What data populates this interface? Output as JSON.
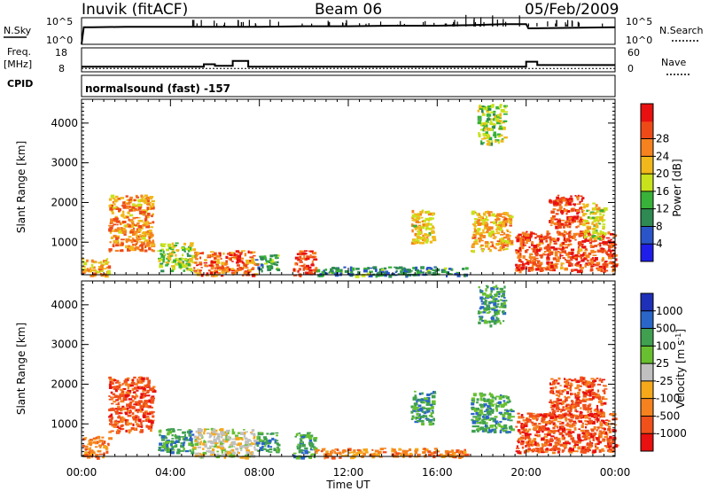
{
  "header": {
    "station": "Inuvik (fitACF)",
    "beam": "Beam 06",
    "date": "05/Feb/2009"
  },
  "left_labels": {
    "nsky": "N.Sky",
    "freq_line1": "Freq.",
    "freq_line2": "[MHz]",
    "cpid": "CPID"
  },
  "right_labels": {
    "nsearch": "N.Search",
    "nave": "Nave"
  },
  "cpid_text": "normalsound (fast) -157",
  "axes": {
    "x_title": "Time UT",
    "y_title": "Slant Range [km]",
    "x_ticks": [
      "00:00",
      "04:00",
      "08:00",
      "12:00",
      "16:00",
      "20:00",
      "00:00"
    ],
    "y_ticks": [
      "1000",
      "2000",
      "3000",
      "4000"
    ],
    "nsky_ticks": [
      "10^5",
      "10^0"
    ],
    "nsearch_ticks": [
      "10^5",
      "10^0"
    ],
    "freq_ticks": [
      "18",
      "8"
    ],
    "nave_ticks": [
      "60",
      "0"
    ]
  },
  "colors": {
    "power": [
      "#1e1ee8",
      "#2a55c8",
      "#2e8a52",
      "#38b238",
      "#c8e21c",
      "#f0b81a",
      "#f5821e",
      "#ee4a18",
      "#e81010"
    ],
    "velocity": [
      "#e81010",
      "#f0501a",
      "#f5821e",
      "#f5a81a",
      "#c0c0c0",
      "#68c030",
      "#40a050",
      "#2a66c8",
      "#1e30b8"
    ]
  },
  "chart_data": [
    {
      "type": "line",
      "title": "N.Sky / N.Search",
      "x_range_hours": [
        0,
        24
      ],
      "series": [
        {
          "name": "N.Sky",
          "x": [
            0.0,
            0.1,
            0.5,
            2.0,
            4.0,
            6.0,
            8.0,
            10.0,
            12.0,
            14.0,
            16.0,
            17.5,
            19.0,
            20.0,
            20.1,
            22.0,
            24.0
          ],
          "y": [
            0.0,
            3.2,
            3.2,
            3.3,
            3.3,
            3.3,
            3.3,
            3.4,
            3.4,
            3.5,
            3.5,
            3.6,
            3.8,
            3.8,
            3.0,
            3.1,
            3.2
          ]
        },
        {
          "name": "N.Search",
          "x": [
            0,
            24
          ],
          "y": [
            0,
            0
          ]
        }
      ]
    },
    {
      "type": "line",
      "title": "Freq. [MHz] / Nave",
      "x_range_hours": [
        0,
        24
      ],
      "series": [
        {
          "name": "Freq.",
          "x": [
            0.0,
            5.5,
            5.5,
            6.0,
            6.0,
            6.8,
            6.8,
            7.5,
            7.5,
            12.0,
            12.0,
            20.0,
            20.0,
            20.5,
            20.5,
            24.0
          ],
          "y": [
            11.0,
            11.0,
            12.5,
            12.5,
            11.5,
            11.5,
            14.5,
            14.5,
            11.0,
            11.0,
            11.0,
            11.0,
            14.0,
            14.0,
            12.0,
            12.0
          ]
        },
        {
          "name": "Nave",
          "x": [
            0.0,
            24.0
          ],
          "y": [
            12,
            12
          ]
        }
      ]
    },
    {
      "type": "heatmap",
      "title": "Power [dB]",
      "xlabel": "Time UT",
      "ylabel": "Slant Range [km]",
      "x_range_hours": [
        0,
        24
      ],
      "ylim": [
        180,
        4600
      ],
      "colorbar_label": "Power [dB]",
      "colorbar_ticks": [
        "4",
        "8",
        "12",
        "16",
        "20",
        "24",
        "28"
      ],
      "colorbar_range": [
        0,
        30
      ],
      "patches": [
        {
          "t0": 0.0,
          "t1": 1.2,
          "r0": 180,
          "r1": 600,
          "value": 20
        },
        {
          "t0": 1.2,
          "t1": 3.2,
          "r0": 800,
          "r1": 2200,
          "value": 22
        },
        {
          "t0": 3.4,
          "t1": 5.0,
          "r0": 300,
          "r1": 1000,
          "value": 14
        },
        {
          "t0": 5.0,
          "t1": 7.8,
          "r0": 180,
          "r1": 800,
          "value": 24
        },
        {
          "t0": 7.8,
          "t1": 8.8,
          "r0": 300,
          "r1": 700,
          "value": 10
        },
        {
          "t0": 9.5,
          "t1": 10.5,
          "r0": 180,
          "r1": 800,
          "value": 27
        },
        {
          "t0": 10.5,
          "t1": 17.3,
          "r0": 180,
          "r1": 400,
          "value": 8
        },
        {
          "t0": 14.8,
          "t1": 15.8,
          "r0": 1000,
          "r1": 1850,
          "value": 18
        },
        {
          "t0": 17.5,
          "t1": 19.3,
          "r0": 800,
          "r1": 1800,
          "value": 20
        },
        {
          "t0": 19.5,
          "t1": 24.0,
          "r0": 300,
          "r1": 1300,
          "value": 26
        },
        {
          "t0": 21.0,
          "t1": 22.5,
          "r0": 1400,
          "r1": 2200,
          "value": 27
        },
        {
          "t0": 22.5,
          "t1": 23.5,
          "r0": 1100,
          "r1": 2000,
          "value": 17
        },
        {
          "t0": 17.8,
          "t1": 19.0,
          "r0": 3500,
          "r1": 4500,
          "value": 14
        }
      ]
    },
    {
      "type": "heatmap",
      "title": "Velocity [m s-1]",
      "xlabel": "Time UT",
      "ylabel": "Slant Range [km]",
      "x_range_hours": [
        0,
        24
      ],
      "ylim": [
        180,
        4600
      ],
      "colorbar_label": "Velocity [m s",
      "colorbar_label_sup": "-1",
      "colorbar_label_end": "]",
      "colorbar_ticks": [
        "1000",
        "500",
        "100",
        "25",
        "-25",
        "-100",
        "-500",
        "-1000"
      ],
      "patches": [
        {
          "t0": 0.0,
          "t1": 1.2,
          "r0": 180,
          "r1": 700,
          "value": -120
        },
        {
          "t0": 1.2,
          "t1": 3.2,
          "r0": 800,
          "r1": 2200,
          "value": -150
        },
        {
          "t0": 3.4,
          "t1": 5.0,
          "r0": 300,
          "r1": 900,
          "value": 120
        },
        {
          "t0": 5.0,
          "t1": 7.8,
          "r0": 180,
          "r1": 900,
          "value": 20
        },
        {
          "t0": 7.8,
          "t1": 8.8,
          "r0": 300,
          "r1": 800,
          "value": 120
        },
        {
          "t0": 9.5,
          "t1": 10.5,
          "r0": 180,
          "r1": 800,
          "value": 150
        },
        {
          "t0": 10.5,
          "t1": 17.3,
          "r0": 180,
          "r1": 400,
          "value": -120
        },
        {
          "t0": 14.8,
          "t1": 15.8,
          "r0": 1000,
          "r1": 1850,
          "value": 120
        },
        {
          "t0": 17.5,
          "t1": 19.3,
          "r0": 800,
          "r1": 1800,
          "value": 120
        },
        {
          "t0": 19.5,
          "t1": 24.0,
          "r0": 300,
          "r1": 1300,
          "value": -200
        },
        {
          "t0": 21.0,
          "t1": 23.5,
          "r0": 1200,
          "r1": 2200,
          "value": -150
        },
        {
          "t0": 17.8,
          "t1": 19.0,
          "r0": 3500,
          "r1": 4500,
          "value": 120
        }
      ]
    }
  ]
}
